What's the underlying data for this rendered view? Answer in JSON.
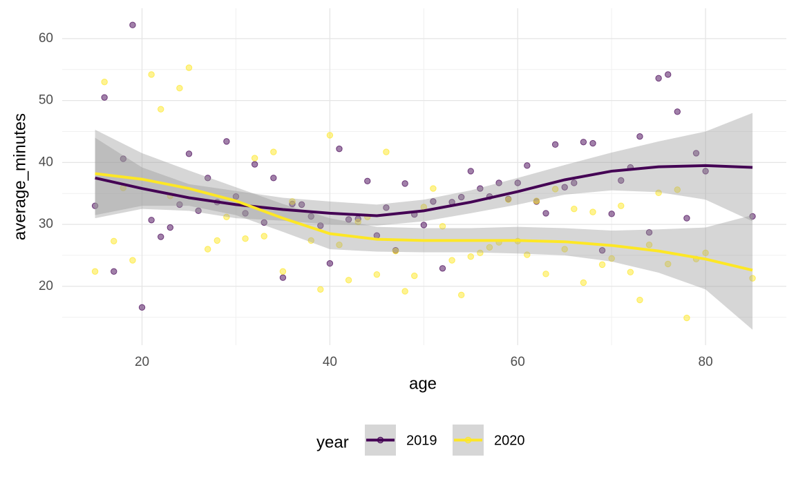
{
  "chart_data": {
    "type": "scatter",
    "x_label": "age",
    "y_label": "average_minutes",
    "legend_title": "year",
    "legend_position": "bottom",
    "xlim": [
      11.5,
      88.6
    ],
    "ylim": [
      10.5,
      64.9
    ],
    "xticks": [
      20,
      40,
      60,
      80
    ],
    "yticks": [
      20,
      30,
      40,
      50,
      60
    ],
    "xminor": [
      30,
      50,
      70
    ],
    "yminor": [
      15,
      25,
      35,
      45,
      55
    ],
    "grid": true,
    "band_color": "#999999",
    "series": [
      {
        "name": "2019",
        "color": "#440154",
        "x": [
          15,
          16,
          17,
          18,
          19,
          20,
          21,
          22,
          23,
          24,
          25,
          26,
          27,
          28,
          29,
          30,
          31,
          32,
          33,
          34,
          35,
          36,
          37,
          38,
          39,
          40,
          41,
          42,
          43,
          44,
          45,
          46,
          47,
          48,
          49,
          50,
          51,
          52,
          53,
          54,
          55,
          56,
          57,
          58,
          59,
          60,
          61,
          62,
          63,
          64,
          65,
          66,
          67,
          68,
          69,
          70,
          71,
          72,
          73,
          74,
          75,
          76,
          77,
          78,
          79,
          80,
          85
        ],
        "values": [
          33.0,
          50.5,
          22.4,
          40.6,
          62.2,
          16.6,
          30.7,
          28.0,
          29.5,
          33.2,
          41.4,
          32.2,
          37.5,
          33.6,
          43.4,
          34.5,
          31.8,
          39.7,
          30.3,
          37.5,
          21.4,
          33.3,
          33.2,
          31.3,
          29.8,
          23.7,
          42.2,
          30.8,
          30.9,
          37.0,
          28.2,
          32.7,
          25.8,
          36.6,
          31.6,
          29.9,
          33.7,
          22.9,
          33.6,
          34.4,
          38.6,
          35.8,
          34.5,
          36.7,
          34.1,
          36.7,
          39.5,
          33.7,
          31.8,
          42.9,
          36.0,
          36.7,
          43.3,
          43.1,
          25.8,
          31.7,
          37.1,
          39.2,
          44.2,
          28.7,
          53.6,
          54.2,
          48.2,
          31.0,
          41.5,
          38.6,
          31.3
        ],
        "smooth_x": [
          15,
          20,
          25,
          30,
          35,
          40,
          45,
          50,
          55,
          60,
          65,
          70,
          75,
          80,
          85
        ],
        "smooth": [
          37.5,
          35.8,
          34.3,
          33.2,
          32.4,
          31.8,
          31.4,
          32.2,
          33.6,
          35.3,
          37.2,
          38.6,
          39.3,
          39.5,
          39.2
        ],
        "smooth_lower": [
          31.0,
          32.5,
          32.2,
          31.0,
          30.6,
          30.0,
          29.8,
          30.5,
          31.8,
          33.2,
          34.8,
          35.5,
          35.2,
          34.0,
          30.5
        ],
        "smooth_upper": [
          44.0,
          39.2,
          36.5,
          35.4,
          34.3,
          33.7,
          33.2,
          34.0,
          35.5,
          37.5,
          39.6,
          41.6,
          43.4,
          45.0,
          48.0
        ]
      },
      {
        "name": "2020",
        "color": "#fde725",
        "x": [
          15,
          16,
          17,
          18,
          19,
          21,
          22,
          23,
          24,
          25,
          27,
          28,
          29,
          31,
          32,
          33,
          34,
          35,
          36,
          38,
          39,
          40,
          41,
          42,
          43,
          44,
          45,
          46,
          47,
          48,
          49,
          50,
          51,
          52,
          53,
          54,
          55,
          56,
          57,
          58,
          59,
          60,
          61,
          62,
          63,
          64,
          65,
          66,
          67,
          68,
          69,
          70,
          71,
          72,
          73,
          74,
          75,
          76,
          77,
          78,
          79,
          80,
          85
        ],
        "values": [
          22.4,
          53.0,
          27.3,
          35.9,
          24.2,
          54.2,
          48.6,
          34.6,
          52.0,
          55.3,
          26.0,
          27.4,
          31.2,
          27.7,
          40.7,
          28.1,
          41.7,
          22.4,
          33.7,
          27.4,
          19.5,
          44.4,
          26.7,
          21.0,
          30.4,
          31.2,
          21.9,
          41.7,
          25.7,
          19.2,
          21.7,
          32.8,
          35.8,
          29.7,
          24.2,
          18.6,
          24.8,
          25.4,
          26.3,
          27.1,
          34.0,
          27.3,
          25.1,
          33.8,
          22.0,
          35.7,
          26.0,
          32.5,
          20.6,
          32.0,
          23.5,
          24.5,
          33.0,
          22.3,
          17.8,
          26.7,
          35.1,
          23.6,
          35.6,
          14.9,
          24.4,
          25.4,
          21.3
        ],
        "smooth_x": [
          15,
          20,
          25,
          30,
          35,
          40,
          45,
          50,
          55,
          60,
          65,
          70,
          75,
          80,
          85
        ],
        "smooth": [
          38.2,
          37.3,
          35.8,
          33.8,
          31.0,
          28.5,
          27.6,
          27.4,
          27.4,
          27.4,
          27.2,
          26.6,
          25.7,
          24.4,
          22.6
        ],
        "smooth_lower": [
          31.5,
          33.0,
          33.0,
          31.5,
          28.8,
          26.0,
          25.6,
          25.5,
          25.5,
          25.3,
          25.0,
          24.0,
          22.2,
          19.5,
          13.0
        ],
        "smooth_upper": [
          45.3,
          41.5,
          38.7,
          36.0,
          33.3,
          31.0,
          29.6,
          29.4,
          29.4,
          29.6,
          29.4,
          29.0,
          29.2,
          29.5,
          31.5
        ]
      }
    ]
  }
}
